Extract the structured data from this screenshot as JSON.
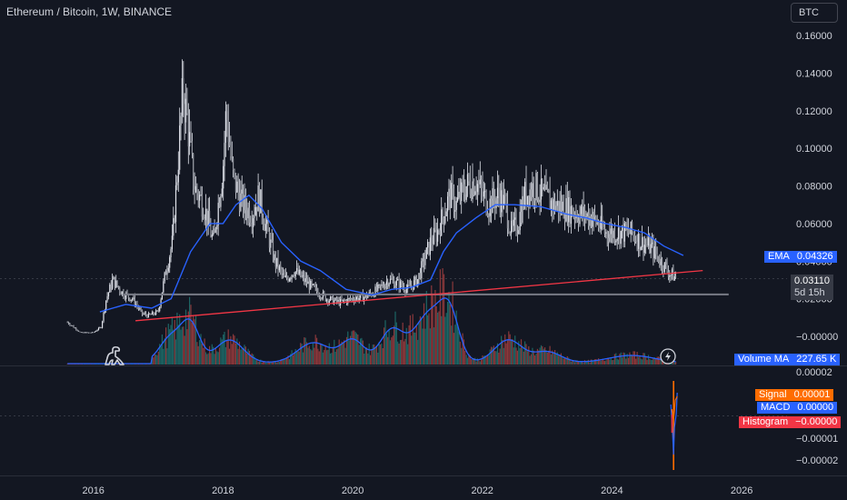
{
  "header": {
    "symbol_title": "Ethereum / Bitcoin, 1W, BINANCE",
    "currency_button": "BTC"
  },
  "colors": {
    "background": "#131722",
    "candle": "#e0e3eb",
    "ema": "#2962ff",
    "trendline_red": "#f23645",
    "support_line": "#787b86",
    "vol_up": "#26a69a",
    "vol_down": "#ef5350",
    "macd_signal": "#ff6d00",
    "macd_line": "#2962ff",
    "histogram": "#f23645"
  },
  "icons": {
    "logo": "dinosaur-logo-icon",
    "lightning": "lightning-icon"
  },
  "legend": {
    "ema": {
      "label": "EMA",
      "value": "0.04326"
    },
    "price": {
      "value": "0.03110",
      "countdown": "5d 15h"
    },
    "volume_ma": {
      "label": "Volume MA",
      "value": "227.65 K"
    },
    "signal": {
      "label": "Signal",
      "value": "0.00001"
    },
    "macd": {
      "label": "MACD",
      "value": "0.00000"
    },
    "histogram": {
      "label": "Histogram",
      "value": "−0.00000"
    }
  },
  "chart_data": [
    {
      "type": "line",
      "panel": "price",
      "x_ticks": [
        "2016",
        "2018",
        "2020",
        "2022",
        "2024",
        "2026"
      ],
      "y_ticks": [
        "0.16000",
        "0.14000",
        "0.12000",
        "0.10000",
        "0.08000",
        "0.06000",
        "0.04000",
        "0.02000",
        "−0.00000"
      ],
      "ylim": [
        -0.0074,
        0.16
      ],
      "xlim": [
        2014.56,
        2026.7
      ],
      "close_series": {
        "x": [
          2015.6,
          2015.8,
          2016.0,
          2016.12,
          2016.2,
          2016.3,
          2016.45,
          2016.6,
          2016.75,
          2016.85,
          2017.0,
          2017.12,
          2017.22,
          2017.3,
          2017.38,
          2017.45,
          2017.55,
          2017.7,
          2017.85,
          2018.0,
          2018.05,
          2018.15,
          2018.3,
          2018.45,
          2018.55,
          2018.65,
          2018.8,
          2018.95,
          2019.1,
          2019.25,
          2019.4,
          2019.6,
          2019.8,
          2020.0,
          2020.2,
          2020.4,
          2020.55,
          2020.7,
          2020.85,
          2021.0,
          2021.1,
          2021.2,
          2021.3,
          2021.4,
          2021.5,
          2021.6,
          2021.75,
          2021.9,
          2022.0,
          2022.1,
          2022.25,
          2022.35,
          2022.45,
          2022.55,
          2022.65,
          2022.8,
          2022.95,
          2023.1,
          2023.3,
          2023.5,
          2023.7,
          2023.9,
          2024.1,
          2024.3,
          2024.45,
          2024.6,
          2024.75,
          2024.9,
          2025.0
        ],
        "y": [
          0.0075,
          0.002,
          0.002,
          0.005,
          0.02,
          0.03,
          0.023,
          0.02,
          0.012,
          0.011,
          0.013,
          0.035,
          0.05,
          0.09,
          0.13,
          0.115,
          0.08,
          0.07,
          0.05,
          0.09,
          0.12,
          0.085,
          0.07,
          0.065,
          0.075,
          0.06,
          0.04,
          0.03,
          0.035,
          0.03,
          0.025,
          0.02,
          0.018,
          0.02,
          0.021,
          0.025,
          0.03,
          0.028,
          0.025,
          0.03,
          0.04,
          0.05,
          0.055,
          0.065,
          0.075,
          0.07,
          0.08,
          0.083,
          0.075,
          0.07,
          0.075,
          0.07,
          0.055,
          0.06,
          0.075,
          0.08,
          0.074,
          0.07,
          0.068,
          0.065,
          0.063,
          0.055,
          0.055,
          0.055,
          0.05,
          0.047,
          0.04,
          0.033,
          0.031
        ]
      },
      "ema": {
        "x": [
          2016.1,
          2016.5,
          2016.9,
          2017.2,
          2017.5,
          2017.8,
          2018.0,
          2018.2,
          2018.4,
          2018.6,
          2018.9,
          2019.2,
          2019.5,
          2019.9,
          2020.3,
          2020.6,
          2020.9,
          2021.2,
          2021.4,
          2021.6,
          2021.9,
          2022.2,
          2022.5,
          2022.9,
          2023.3,
          2023.6,
          2023.9,
          2024.2,
          2024.5,
          2024.8,
          2025.1
        ],
        "y": [
          0.013,
          0.017,
          0.015,
          0.02,
          0.045,
          0.06,
          0.06,
          0.07,
          0.075,
          0.068,
          0.05,
          0.04,
          0.035,
          0.025,
          0.022,
          0.025,
          0.026,
          0.03,
          0.045,
          0.055,
          0.063,
          0.07,
          0.07,
          0.069,
          0.065,
          0.063,
          0.06,
          0.058,
          0.055,
          0.048,
          0.043
        ]
      },
      "trendline": {
        "x": [
          2016.65,
          2025.4
        ],
        "y": [
          0.0083,
          0.035
        ]
      },
      "support_line": {
        "x": [
          2016.45,
          2025.8
        ],
        "y": [
          0.0223,
          0.0223
        ]
      },
      "last_price": 0.0311,
      "ema_last": 0.04326
    },
    {
      "type": "bar",
      "panel": "volume",
      "volume_ma_last": "227.65 K"
    },
    {
      "type": "line",
      "panel": "macd",
      "y_ticks": [
        "0.00002",
        "0.00001",
        "−0.00001",
        "−0.00002"
      ],
      "ylim": [
        -2.5e-05,
        2.5e-05
      ],
      "signal": 1e-05,
      "macd": 0.0,
      "histogram": -0.0
    }
  ]
}
